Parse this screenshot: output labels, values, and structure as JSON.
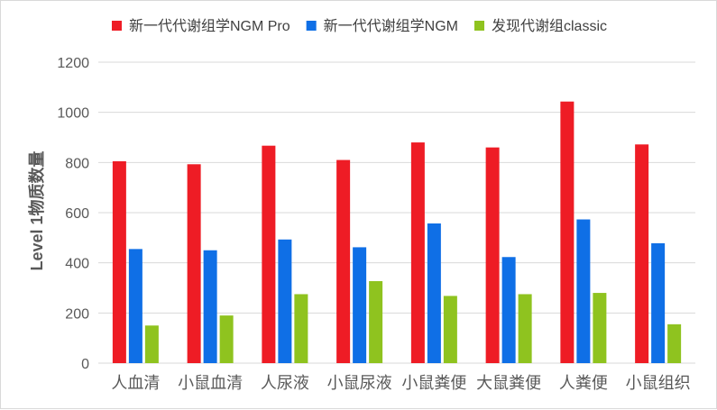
{
  "chart_data": {
    "type": "bar",
    "title": "",
    "xlabel": "",
    "ylabel": "Level 1物质数量",
    "ylim": [
      0,
      1200
    ],
    "ytick_step": 200,
    "grid": true,
    "legend_position": "top",
    "categories": [
      "人血清",
      "小鼠血清",
      "人尿液",
      "小鼠尿液",
      "小鼠粪便",
      "大鼠粪便",
      "人粪便",
      "小鼠组织"
    ],
    "series": [
      {
        "name": "新一代代谢组学NGM Pro",
        "color": "#ee1c25",
        "values": [
          805,
          793,
          867,
          810,
          880,
          860,
          1043,
          872
        ]
      },
      {
        "name": "新一代代谢组学NGM",
        "color": "#0f6fe6",
        "values": [
          455,
          450,
          493,
          462,
          557,
          423,
          573,
          478
        ]
      },
      {
        "name": "发现代谢组classic",
        "color": "#8fc31f",
        "values": [
          150,
          190,
          275,
          327,
          268,
          275,
          280,
          155
        ]
      }
    ]
  }
}
